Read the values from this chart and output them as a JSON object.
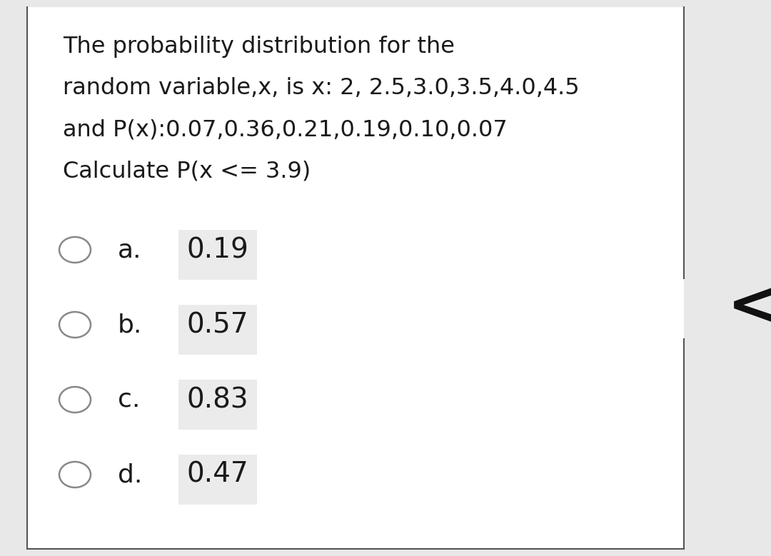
{
  "question_text_lines": [
    "The probability distribution for the",
    "random variable,x, is x: 2, 2.5,3.0,3.5,4.0,4.5",
    "and P(x):0.07,0.36,0.21,0.19,0.10,0.07",
    "Calculate P(x <= 3.9)"
  ],
  "options": [
    {
      "label": "a.",
      "value": "0.19"
    },
    {
      "label": "b.",
      "value": "0.57"
    },
    {
      "label": "c.",
      "value": "0.83"
    },
    {
      "label": "d.",
      "value": "0.47"
    }
  ],
  "background_color": "#e8e8e8",
  "card_color": "#ffffff",
  "border_color": "#555555",
  "text_color": "#1a1a1a",
  "option_bg_color": "#ebebeb",
  "circle_color": "#888888",
  "arrow_color": "#111111",
  "question_font_size": 23,
  "option_label_font_size": 26,
  "option_value_font_size": 28,
  "arrow_symbol": "<"
}
